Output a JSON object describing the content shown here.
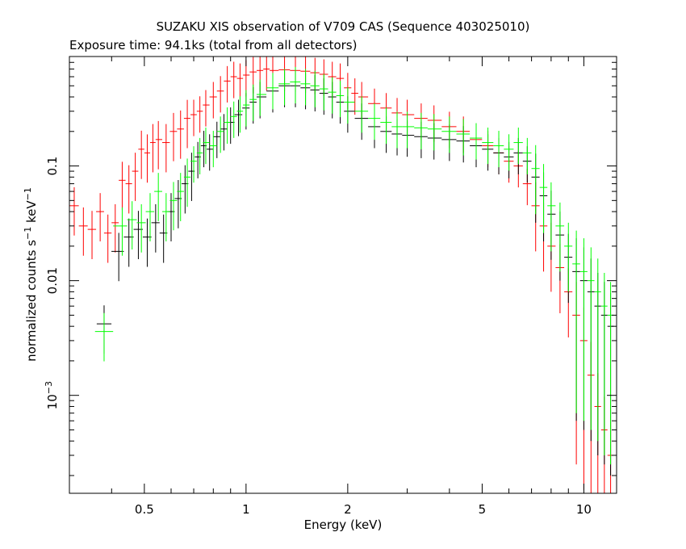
{
  "chart_data": {
    "type": "scatter",
    "title": "SUZAKU XIS observation of V709 CAS (Sequence 403025010)",
    "subtitle": "Exposure time: 94.1ks (total from all detectors)",
    "xlabel": "Energy (keV)",
    "ylabel_main": "normalized counts s",
    "ylabel_sup1": "−1",
    "ylabel_mid": " keV",
    "ylabel_sup2": "−1",
    "x_scale": "log",
    "y_scale": "log",
    "xlim": [
      0.3,
      12.5
    ],
    "ylim": [
      0.00014,
      0.9
    ],
    "x_ticks": [
      {
        "value": 0.5,
        "label": "0.5"
      },
      {
        "value": 1,
        "label": "1"
      },
      {
        "value": 2,
        "label": "2"
      },
      {
        "value": 5,
        "label": "5"
      },
      {
        "value": 10,
        "label": "10"
      }
    ],
    "y_ticks": [
      {
        "value": 0.1,
        "label": "0.1",
        "sup": ""
      },
      {
        "value": 0.01,
        "label": "0.01",
        "sup": ""
      },
      {
        "value": 0.001,
        "label": "10",
        "sup": "−3"
      }
    ],
    "grid": false,
    "series": [
      {
        "color": "#ff0000",
        "points": [
          [
            0.31,
            0.045
          ],
          [
            0.33,
            0.03
          ],
          [
            0.35,
            0.028
          ],
          [
            0.37,
            0.04
          ],
          [
            0.39,
            0.026
          ],
          [
            0.41,
            0.032
          ],
          [
            0.43,
            0.075
          ],
          [
            0.45,
            0.07
          ],
          [
            0.47,
            0.09
          ],
          [
            0.49,
            0.14
          ],
          [
            0.51,
            0.13
          ],
          [
            0.53,
            0.16
          ],
          [
            0.55,
            0.17
          ],
          [
            0.58,
            0.16
          ],
          [
            0.61,
            0.2
          ],
          [
            0.64,
            0.21
          ],
          [
            0.67,
            0.26
          ],
          [
            0.7,
            0.28
          ],
          [
            0.73,
            0.3
          ],
          [
            0.76,
            0.34
          ],
          [
            0.8,
            0.4
          ],
          [
            0.84,
            0.45
          ],
          [
            0.88,
            0.55
          ],
          [
            0.92,
            0.6
          ],
          [
            0.96,
            0.58
          ],
          [
            1.0,
            0.62
          ],
          [
            1.05,
            0.66
          ],
          [
            1.1,
            0.68
          ],
          [
            1.15,
            0.7
          ],
          [
            1.2,
            0.68
          ],
          [
            1.3,
            0.69
          ],
          [
            1.4,
            0.68
          ],
          [
            1.5,
            0.67
          ],
          [
            1.6,
            0.65
          ],
          [
            1.7,
            0.63
          ],
          [
            1.8,
            0.6
          ],
          [
            1.9,
            0.58
          ],
          [
            2.0,
            0.48
          ],
          [
            2.1,
            0.43
          ],
          [
            2.2,
            0.4
          ],
          [
            2.4,
            0.35
          ],
          [
            2.6,
            0.32
          ],
          [
            2.8,
            0.29
          ],
          [
            3.0,
            0.28
          ],
          [
            3.3,
            0.26
          ],
          [
            3.6,
            0.25
          ],
          [
            4.0,
            0.22
          ],
          [
            4.4,
            0.2
          ],
          [
            4.8,
            0.17
          ],
          [
            5.2,
            0.15
          ],
          [
            5.6,
            0.13
          ],
          [
            6.0,
            0.11
          ],
          [
            6.4,
            0.1
          ],
          [
            6.8,
            0.07
          ],
          [
            7.2,
            0.045
          ],
          [
            7.6,
            0.03
          ],
          [
            8.0,
            0.02
          ],
          [
            8.5,
            0.013
          ],
          [
            9.0,
            0.008
          ],
          [
            9.5,
            0.005
          ],
          [
            10.0,
            0.003
          ],
          [
            10.5,
            0.0015
          ],
          [
            11.0,
            0.0008
          ],
          [
            11.5,
            0.0005
          ],
          [
            12.0,
            0.0003
          ]
        ]
      },
      {
        "color": "#000000",
        "points": [
          [
            0.38,
            0.0042
          ],
          [
            0.42,
            0.018
          ],
          [
            0.45,
            0.024
          ],
          [
            0.48,
            0.028
          ],
          [
            0.51,
            0.024
          ],
          [
            0.54,
            0.032
          ],
          [
            0.57,
            0.026
          ],
          [
            0.6,
            0.04
          ],
          [
            0.63,
            0.052
          ],
          [
            0.66,
            0.07
          ],
          [
            0.69,
            0.09
          ],
          [
            0.72,
            0.12
          ],
          [
            0.75,
            0.15
          ],
          [
            0.78,
            0.14
          ],
          [
            0.82,
            0.18
          ],
          [
            0.86,
            0.21
          ],
          [
            0.9,
            0.24
          ],
          [
            0.95,
            0.28
          ],
          [
            1.0,
            0.32
          ],
          [
            1.05,
            0.36
          ],
          [
            1.1,
            0.4
          ],
          [
            1.2,
            0.45
          ],
          [
            1.3,
            0.5
          ],
          [
            1.4,
            0.5
          ],
          [
            1.5,
            0.48
          ],
          [
            1.6,
            0.46
          ],
          [
            1.7,
            0.43
          ],
          [
            1.8,
            0.4
          ],
          [
            1.9,
            0.36
          ],
          [
            2.0,
            0.3
          ],
          [
            2.2,
            0.26
          ],
          [
            2.4,
            0.22
          ],
          [
            2.6,
            0.2
          ],
          [
            2.8,
            0.19
          ],
          [
            3.0,
            0.185
          ],
          [
            3.3,
            0.18
          ],
          [
            3.6,
            0.175
          ],
          [
            4.0,
            0.17
          ],
          [
            4.4,
            0.165
          ],
          [
            4.8,
            0.15
          ],
          [
            5.2,
            0.14
          ],
          [
            5.6,
            0.13
          ],
          [
            6.0,
            0.12
          ],
          [
            6.4,
            0.13
          ],
          [
            6.8,
            0.11
          ],
          [
            7.2,
            0.08
          ],
          [
            7.6,
            0.055
          ],
          [
            8.0,
            0.038
          ],
          [
            8.5,
            0.025
          ],
          [
            9.0,
            0.016
          ],
          [
            9.5,
            0.012
          ],
          [
            10.0,
            0.01
          ],
          [
            10.5,
            0.008
          ],
          [
            11.0,
            0.006
          ],
          [
            11.5,
            0.005
          ],
          [
            12.0,
            0.004
          ]
        ]
      },
      {
        "color": "#00ff00",
        "points": [
          [
            0.38,
            0.0036
          ],
          [
            0.43,
            0.03
          ],
          [
            0.46,
            0.034
          ],
          [
            0.49,
            0.032
          ],
          [
            0.52,
            0.04
          ],
          [
            0.55,
            0.06
          ],
          [
            0.58,
            0.04
          ],
          [
            0.61,
            0.05
          ],
          [
            0.64,
            0.06
          ],
          [
            0.67,
            0.08
          ],
          [
            0.7,
            0.11
          ],
          [
            0.73,
            0.13
          ],
          [
            0.76,
            0.16
          ],
          [
            0.8,
            0.15
          ],
          [
            0.84,
            0.2
          ],
          [
            0.88,
            0.24
          ],
          [
            0.92,
            0.27
          ],
          [
            0.96,
            0.3
          ],
          [
            1.0,
            0.34
          ],
          [
            1.05,
            0.38
          ],
          [
            1.1,
            0.42
          ],
          [
            1.2,
            0.48
          ],
          [
            1.3,
            0.52
          ],
          [
            1.4,
            0.54
          ],
          [
            1.5,
            0.52
          ],
          [
            1.6,
            0.5
          ],
          [
            1.7,
            0.47
          ],
          [
            1.8,
            0.44
          ],
          [
            1.9,
            0.41
          ],
          [
            2.0,
            0.36
          ],
          [
            2.2,
            0.3
          ],
          [
            2.4,
            0.26
          ],
          [
            2.6,
            0.24
          ],
          [
            2.8,
            0.22
          ],
          [
            3.0,
            0.22
          ],
          [
            3.3,
            0.215
          ],
          [
            3.6,
            0.21
          ],
          [
            4.0,
            0.2
          ],
          [
            4.4,
            0.19
          ],
          [
            4.8,
            0.175
          ],
          [
            5.2,
            0.16
          ],
          [
            5.6,
            0.15
          ],
          [
            6.0,
            0.14
          ],
          [
            6.4,
            0.16
          ],
          [
            6.8,
            0.13
          ],
          [
            7.2,
            0.095
          ],
          [
            7.6,
            0.065
          ],
          [
            8.0,
            0.045
          ],
          [
            8.5,
            0.03
          ],
          [
            9.0,
            0.02
          ],
          [
            9.5,
            0.014
          ],
          [
            10.0,
            0.012
          ],
          [
            10.5,
            0.01
          ],
          [
            11.0,
            0.008
          ],
          [
            11.5,
            0.006
          ],
          [
            12.0,
            0.005
          ]
        ]
      }
    ]
  }
}
